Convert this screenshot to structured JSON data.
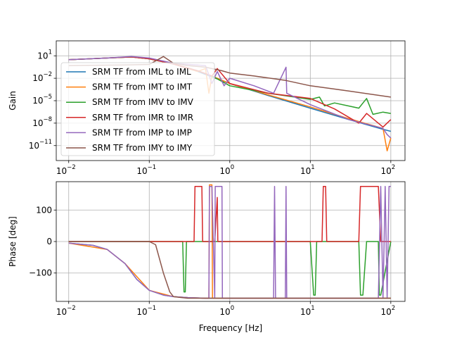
{
  "chart_data": [
    {
      "type": "line",
      "panel": "gain",
      "xscale": "log",
      "yscale": "log",
      "xlabel": "",
      "ylabel": "Gain",
      "xlim": [
        0.007,
        150
      ],
      "ylim": [
        1e-13,
        1000.0
      ],
      "grid": true,
      "legend_position": "left",
      "xticks": [
        {
          "base": "10",
          "exp": "−2",
          "value": 0.01
        },
        {
          "base": "10",
          "exp": "−1",
          "value": 0.1
        },
        {
          "base": "10",
          "exp": "0",
          "value": 1
        },
        {
          "base": "10",
          "exp": "1",
          "value": 10
        },
        {
          "base": "10",
          "exp": "2",
          "value": 100
        }
      ],
      "yticks": [
        {
          "base": "10",
          "exp": "1",
          "value": 10
        },
        {
          "base": "10",
          "exp": "−2",
          "value": 0.01
        },
        {
          "base": "10",
          "exp": "−5",
          "value": 1e-05
        },
        {
          "base": "10",
          "exp": "−8",
          "value": 1e-08
        },
        {
          "base": "10",
          "exp": "−11",
          "value": 1e-11
        }
      ],
      "series": [
        {
          "name": "SRM TF from IML to IML",
          "color": "#1f77b4",
          "x": [
            0.01,
            0.03,
            0.06,
            0.1,
            0.2,
            0.4,
            0.6,
            1,
            3,
            10,
            30,
            80,
            100
          ],
          "y": [
            3.0,
            5.0,
            7.0,
            4.0,
            0.8,
            0.08,
            0.015,
            0.002,
            5e-05,
            1e-06,
            3e-08,
            1.5e-09,
            8e-10
          ]
        },
        {
          "name": "SRM TF from IMT to IMT",
          "color": "#ff7f0e",
          "x": [
            0.01,
            0.03,
            0.06,
            0.1,
            0.2,
            0.4,
            0.5,
            0.55,
            0.6,
            1,
            3,
            10,
            30,
            80,
            90,
            100
          ],
          "y": [
            3.0,
            5.0,
            7.0,
            4.0,
            0.8,
            0.08,
            0.2,
            0.0001,
            0.02,
            0.002,
            6e-05,
            1.5e-06,
            4e-08,
            2e-09,
            2e-12,
            1e-10
          ]
        },
        {
          "name": "SRM TF from IMV to IMV",
          "color": "#2ca02c",
          "x": [
            0.01,
            0.03,
            0.06,
            0.1,
            0.2,
            0.4,
            0.6,
            1,
            3,
            10,
            13,
            15,
            20,
            40,
            50,
            60,
            80,
            100
          ],
          "y": [
            3.0,
            5.0,
            7.0,
            4.0,
            0.8,
            0.1,
            0.02,
            0.001,
            0.0001,
            1.5e-05,
            3e-05,
            2e-06,
            5e-06,
            1e-06,
            2e-05,
            1.5e-07,
            3e-07,
            2e-07
          ]
        },
        {
          "name": "SRM TF from IMR to IMR",
          "color": "#d62728",
          "x": [
            0.01,
            0.03,
            0.06,
            0.1,
            0.2,
            0.4,
            0.6,
            0.7,
            1,
            3,
            10,
            15,
            20,
            40,
            50,
            80,
            100
          ],
          "y": [
            3.0,
            5.0,
            7.0,
            4.0,
            0.8,
            0.1,
            0.02,
            0.2,
            0.002,
            0.0001,
            2e-05,
            3e-06,
            8e-07,
            1e-08,
            2e-07,
            3e-09,
            3e-08
          ]
        },
        {
          "name": "SRM TF from IMP to IMP",
          "color": "#9467bd",
          "x": [
            0.01,
            0.03,
            0.06,
            0.1,
            0.2,
            0.5,
            0.6,
            0.7,
            0.85,
            1,
            2,
            3.5,
            5,
            5.1,
            10,
            30,
            80,
            90,
            100
          ],
          "y": [
            3.0,
            5.0,
            8.0,
            5.0,
            1.0,
            0.5,
            0.002,
            0.08,
            0.001,
            0.01,
            0.001,
            0.0001,
            0.3,
            0.0001,
            3e-06,
            3e-08,
            2e-09,
            3e-10,
            1e-10
          ]
        },
        {
          "name": "SRM TF from IMY to IMY",
          "color": "#8c564b",
          "x": [
            0.01,
            0.05,
            0.1,
            0.15,
            0.2,
            0.3,
            0.5,
            0.8,
            1,
            2,
            5,
            10,
            30,
            100
          ],
          "y": [
            0.5,
            0.6,
            0.7,
            8.0,
            1.0,
            0.5,
            0.3,
            0.1,
            0.05,
            0.02,
            0.005,
            0.001,
            0.0002,
            3e-05
          ]
        }
      ]
    },
    {
      "type": "line",
      "panel": "phase",
      "xscale": "log",
      "yscale": "linear",
      "xlabel": "Frequency [Hz]",
      "ylabel": "Phase [deg]",
      "xlim": [
        0.007,
        150
      ],
      "ylim": [
        -190,
        190
      ],
      "grid": true,
      "xticks": [
        {
          "base": "10",
          "exp": "−2",
          "value": 0.01
        },
        {
          "base": "10",
          "exp": "−1",
          "value": 0.1
        },
        {
          "base": "10",
          "exp": "0",
          "value": 1
        },
        {
          "base": "10",
          "exp": "1",
          "value": 10
        },
        {
          "base": "10",
          "exp": "2",
          "value": 100
        }
      ],
      "yticks": [
        {
          "label": "100",
          "value": 100
        },
        {
          "label": "0",
          "value": 0
        },
        {
          "label": "−100",
          "value": -100
        }
      ],
      "series": [
        {
          "name": "SRM TF from IML to IML",
          "color": "#1f77b4",
          "x": [
            0.01,
            0.02,
            0.03,
            0.05,
            0.07,
            0.1,
            0.15,
            0.2,
            0.3,
            0.5,
            1,
            3,
            10,
            30,
            100
          ],
          "y": [
            -5,
            -12,
            -25,
            -70,
            -120,
            -155,
            -170,
            -175,
            -178,
            -180,
            -180,
            -180,
            -180,
            -180,
            -180
          ]
        },
        {
          "name": "SRM TF from IMT to IMT",
          "color": "#ff7f0e",
          "x": [
            0.01,
            0.03,
            0.05,
            0.1,
            0.2,
            0.3,
            0.5,
            0.55,
            0.56,
            0.6,
            0.61,
            1,
            10,
            100
          ],
          "y": [
            -5,
            -25,
            -70,
            -155,
            -175,
            -178,
            -180,
            -180,
            180,
            180,
            -180,
            -180,
            -180,
            -180
          ]
        },
        {
          "name": "SRM TF from IMV to IMV",
          "color": "#2ca02c",
          "x": [
            0.01,
            0.1,
            0.2,
            0.26,
            0.27,
            0.28,
            0.29,
            0.5,
            0.55,
            1,
            10,
            11,
            11.5,
            12,
            40,
            42,
            45,
            50,
            70,
            72,
            75,
            100
          ],
          "y": [
            0,
            0,
            0,
            0,
            -160,
            -160,
            0,
            0,
            0,
            0,
            0,
            -170,
            -170,
            0,
            0,
            -170,
            -170,
            0,
            0,
            -170,
            -170,
            0
          ]
        },
        {
          "name": "SRM TF from IMR to IMR",
          "color": "#d62728",
          "x": [
            0.01,
            0.1,
            0.35,
            0.36,
            0.37,
            0.45,
            0.46,
            0.5,
            0.55,
            0.6,
            0.65,
            0.7,
            0.71,
            1,
            10,
            14,
            14.5,
            15.5,
            16,
            20,
            40,
            42,
            70,
            75,
            100
          ],
          "y": [
            0,
            0,
            0,
            0,
            175,
            175,
            0,
            0,
            0,
            0,
            0,
            140,
            0,
            0,
            0,
            0,
            175,
            175,
            0,
            0,
            0,
            175,
            175,
            0,
            0
          ]
        },
        {
          "name": "SRM TF from IMP to IMP",
          "color": "#9467bd",
          "x": [
            0.01,
            0.02,
            0.03,
            0.05,
            0.07,
            0.1,
            0.15,
            0.2,
            0.3,
            0.5,
            0.55,
            0.56,
            0.6,
            0.65,
            0.66,
            0.8,
            0.81,
            0.9,
            1,
            1.1,
            3.5,
            3.6,
            3.7,
            4.9,
            5,
            5.1,
            10,
            70,
            75,
            80,
            85,
            90,
            95,
            100
          ],
          "y": [
            -5,
            -12,
            -25,
            -70,
            -120,
            -155,
            -170,
            -175,
            -178,
            -180,
            -180,
            175,
            175,
            -180,
            175,
            175,
            -180,
            -180,
            -180,
            -180,
            -180,
            175,
            -180,
            -180,
            175,
            -180,
            -180,
            -180,
            175,
            -180,
            175,
            -180,
            175,
            175
          ]
        },
        {
          "name": "SRM TF from IMY to IMY",
          "color": "#8c564b",
          "x": [
            0.01,
            0.05,
            0.1,
            0.12,
            0.15,
            0.18,
            0.2,
            0.3,
            1,
            1.1,
            1.2,
            1.3,
            1.35,
            1.4,
            100
          ],
          "y": [
            0,
            0,
            0,
            -10,
            -100,
            -160,
            -175,
            -180,
            -180,
            -180,
            -180,
            -180,
            -180,
            -180,
            -180
          ]
        }
      ]
    }
  ]
}
